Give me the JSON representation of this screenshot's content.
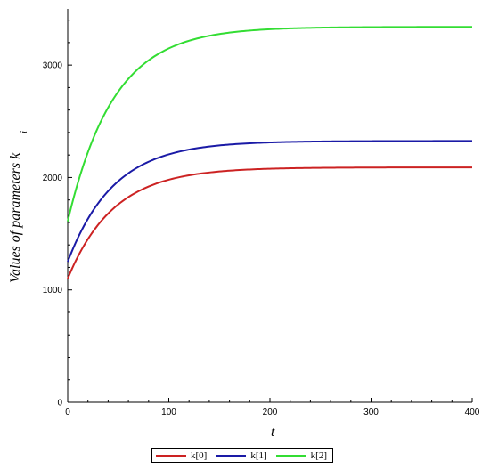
{
  "chart_data": {
    "type": "line",
    "xlabel": "t",
    "ylabel": "Values of parameters k",
    "ylabel_subscript": "i",
    "xlim": [
      0,
      400
    ],
    "ylim": [
      0,
      3500
    ],
    "x_ticks": [
      0,
      100,
      200,
      300,
      400
    ],
    "y_ticks": [
      0,
      1000,
      2000,
      3000
    ],
    "grid": false,
    "legend_position": "bottom",
    "series": [
      {
        "name": "k[0]",
        "color": "#cc2222",
        "y0": 1100,
        "yinf": 2090,
        "rate": 0.022
      },
      {
        "name": "k[1]",
        "color": "#1a1aa6",
        "y0": 1250,
        "yinf": 2325,
        "rate": 0.022
      },
      {
        "name": "k[2]",
        "color": "#33dd33",
        "y0": 1610,
        "yinf": 3340,
        "rate": 0.022
      }
    ]
  }
}
